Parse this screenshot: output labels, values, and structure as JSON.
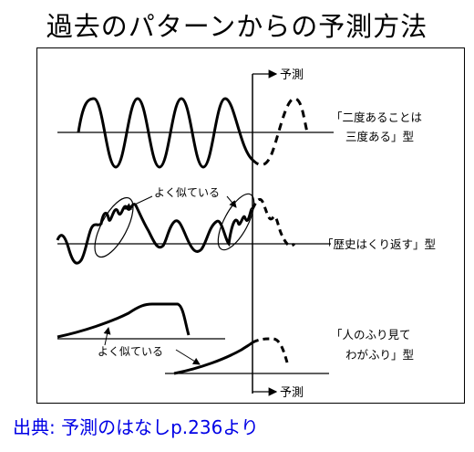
{
  "title": "過去のパターンからの予測方法",
  "source": "出典: 予測のはなしp.236より",
  "diagram": {
    "forecast_label_top": "予測",
    "forecast_label_bottom": "予測",
    "similar_label_1": "よく似ている",
    "similar_label_2": "よく似ている",
    "pattern_1_line_1": "「二度あることは",
    "pattern_1_line_2": "三度ある」型",
    "pattern_2": "「歴史はくり返す」型",
    "pattern_3_line_1": "「人のふり見て",
    "pattern_3_line_2": "わがふり」型"
  },
  "colors": {
    "source_text": "#0000e6",
    "line": "#000000"
  }
}
